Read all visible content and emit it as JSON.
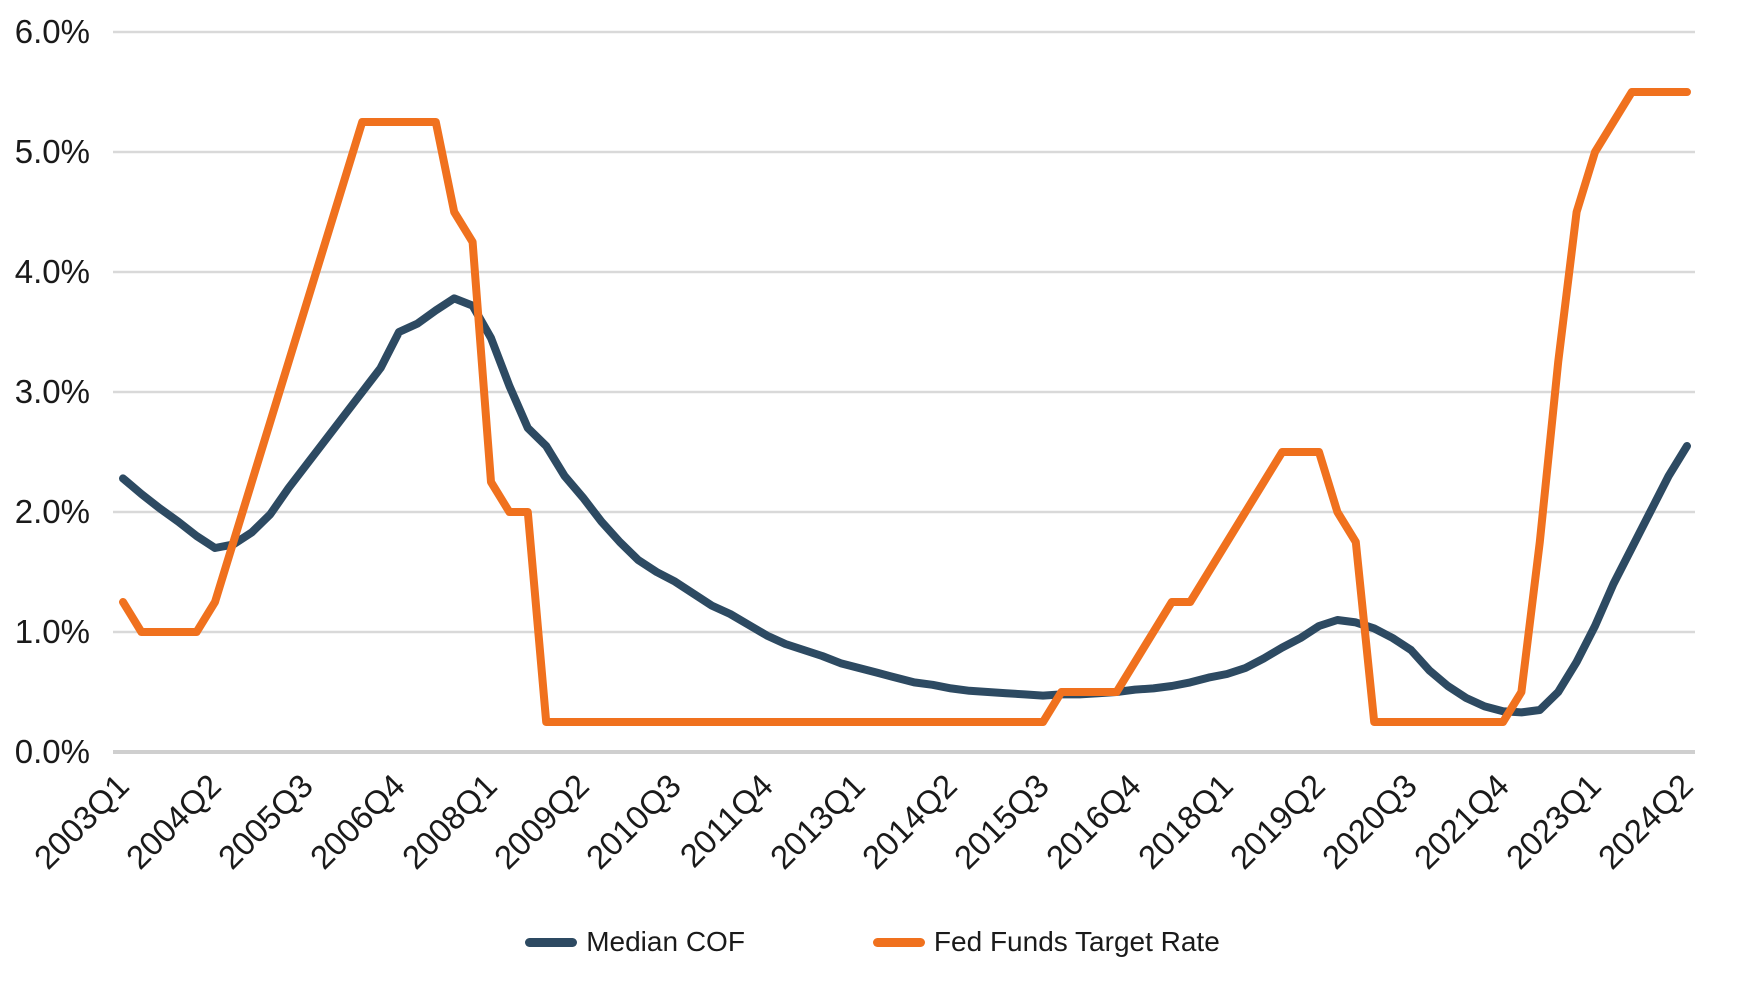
{
  "chart_data": {
    "type": "line",
    "title": "",
    "xlabel": "",
    "ylabel": "",
    "ylim": [
      0,
      6
    ],
    "y_tick_labels": [
      "0.0%",
      "1.0%",
      "2.0%",
      "3.0%",
      "4.0%",
      "5.0%",
      "6.0%"
    ],
    "x_tick_every": 5,
    "x_tick_labels": [
      "2003Q1",
      "2004Q2",
      "2005Q3",
      "2006Q4",
      "2008Q1",
      "2009Q2",
      "2010Q3",
      "2011Q4",
      "2013Q1",
      "2014Q2",
      "2015Q3",
      "2016Q4",
      "2018Q1",
      "2019Q2",
      "2020Q3",
      "2021Q4",
      "2023Q1",
      "2024Q2"
    ],
    "grid": "horizontal",
    "legend_position": "bottom",
    "x_categories": [
      "2003Q1",
      "2003Q2",
      "2003Q3",
      "2003Q4",
      "2004Q1",
      "2004Q2",
      "2004Q3",
      "2004Q4",
      "2005Q1",
      "2005Q2",
      "2005Q3",
      "2005Q4",
      "2006Q1",
      "2006Q2",
      "2006Q3",
      "2006Q4",
      "2007Q1",
      "2007Q2",
      "2007Q3",
      "2007Q4",
      "2008Q1",
      "2008Q2",
      "2008Q3",
      "2008Q4",
      "2009Q1",
      "2009Q2",
      "2009Q3",
      "2009Q4",
      "2010Q1",
      "2010Q2",
      "2010Q3",
      "2010Q4",
      "2011Q1",
      "2011Q2",
      "2011Q3",
      "2011Q4",
      "2012Q1",
      "2012Q2",
      "2012Q3",
      "2012Q4",
      "2013Q1",
      "2013Q2",
      "2013Q3",
      "2013Q4",
      "2014Q1",
      "2014Q2",
      "2014Q3",
      "2014Q4",
      "2015Q1",
      "2015Q2",
      "2015Q3",
      "2015Q4",
      "2016Q1",
      "2016Q2",
      "2016Q3",
      "2016Q4",
      "2017Q1",
      "2017Q2",
      "2017Q3",
      "2017Q4",
      "2018Q1",
      "2018Q2",
      "2018Q3",
      "2018Q4",
      "2019Q1",
      "2019Q2",
      "2019Q3",
      "2019Q4",
      "2020Q1",
      "2020Q2",
      "2020Q3",
      "2020Q4",
      "2021Q1",
      "2021Q2",
      "2021Q3",
      "2021Q4",
      "2022Q1",
      "2022Q2",
      "2022Q3",
      "2022Q4",
      "2023Q1",
      "2023Q2",
      "2023Q3",
      "2023Q4",
      "2024Q1",
      "2024Q2"
    ],
    "series": [
      {
        "name": "Median COF",
        "color": "#2D4A62",
        "values": [
          2.28,
          2.15,
          2.03,
          1.92,
          1.8,
          1.7,
          1.73,
          1.83,
          1.98,
          2.2,
          2.4,
          2.6,
          2.8,
          3.0,
          3.2,
          3.5,
          3.57,
          3.68,
          3.78,
          3.72,
          3.45,
          3.05,
          2.7,
          2.55,
          2.3,
          2.12,
          1.92,
          1.75,
          1.6,
          1.5,
          1.42,
          1.32,
          1.22,
          1.15,
          1.06,
          0.97,
          0.9,
          0.85,
          0.8,
          0.74,
          0.7,
          0.66,
          0.62,
          0.58,
          0.56,
          0.53,
          0.51,
          0.5,
          0.49,
          0.48,
          0.47,
          0.48,
          0.48,
          0.49,
          0.5,
          0.52,
          0.53,
          0.55,
          0.58,
          0.62,
          0.65,
          0.7,
          0.78,
          0.87,
          0.95,
          1.05,
          1.1,
          1.08,
          1.03,
          0.95,
          0.85,
          0.68,
          0.55,
          0.45,
          0.38,
          0.34,
          0.33,
          0.35,
          0.5,
          0.75,
          1.05,
          1.4,
          1.7,
          2.0,
          2.3,
          2.55
        ]
      },
      {
        "name": "Fed Funds Target Rate",
        "color": "#F0711E",
        "values": [
          1.25,
          1.0,
          1.0,
          1.0,
          1.0,
          1.25,
          1.75,
          2.25,
          2.75,
          3.25,
          3.75,
          4.25,
          4.75,
          5.25,
          5.25,
          5.25,
          5.25,
          5.25,
          4.5,
          4.25,
          2.25,
          2.0,
          2.0,
          0.25,
          0.25,
          0.25,
          0.25,
          0.25,
          0.25,
          0.25,
          0.25,
          0.25,
          0.25,
          0.25,
          0.25,
          0.25,
          0.25,
          0.25,
          0.25,
          0.25,
          0.25,
          0.25,
          0.25,
          0.25,
          0.25,
          0.25,
          0.25,
          0.25,
          0.25,
          0.25,
          0.25,
          0.5,
          0.5,
          0.5,
          0.5,
          0.75,
          1.0,
          1.25,
          1.25,
          1.5,
          1.75,
          2.0,
          2.25,
          2.5,
          2.5,
          2.5,
          2.0,
          1.75,
          0.25,
          0.25,
          0.25,
          0.25,
          0.25,
          0.25,
          0.25,
          0.25,
          0.5,
          1.75,
          3.25,
          4.5,
          5.0,
          5.25,
          5.5,
          5.5,
          5.5,
          5.5
        ]
      }
    ],
    "style": {
      "gridline_color": "#D9D9D9",
      "baseline_color": "#CFCFCF",
      "axis_text_color": "#1a1a1a",
      "line_width": 8
    }
  }
}
